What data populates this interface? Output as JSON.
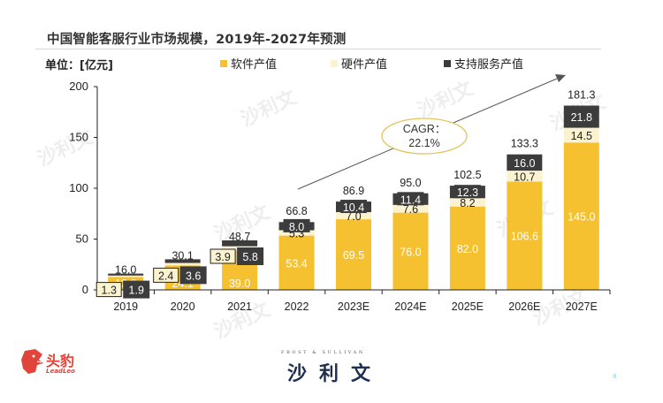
{
  "header": {
    "title": "中国智能客服行业市场规模，2019年-2027年预测",
    "unit": "单位：[亿元]"
  },
  "colors": {
    "software": "#F5C131",
    "hardware": "#FBF3D0",
    "service": "#3C3C3C",
    "cagr_ellipse": "#E2C45A",
    "axis": "#222222",
    "arrow": "#555555"
  },
  "chart_data": {
    "type": "bar",
    "stacked": true,
    "title": "中国智能客服行业市场规模，2019年-2027年预测",
    "xlabel": "",
    "ylabel": "单位：[亿元]",
    "ylim": [
      0,
      200
    ],
    "yticks": [
      0,
      50,
      100,
      150,
      200
    ],
    "categories": [
      "2019",
      "2020",
      "2021",
      "2022",
      "2023E",
      "2024E",
      "2025E",
      "2026E",
      "2027E"
    ],
    "series": [
      {
        "name": "软件产值",
        "key": "software",
        "values": [
          12.8,
          24.1,
          39.0,
          53.4,
          69.5,
          76.0,
          82.0,
          106.6,
          145.0
        ]
      },
      {
        "name": "硬件产值",
        "key": "hardware",
        "values": [
          1.3,
          2.4,
          3.9,
          5.3,
          7.0,
          7.6,
          8.2,
          10.7,
          14.5
        ]
      },
      {
        "name": "支持服务产值",
        "key": "service",
        "values": [
          1.9,
          3.6,
          5.8,
          8.0,
          10.4,
          11.4,
          12.3,
          16.0,
          21.8
        ]
      }
    ],
    "totals": [
      16.0,
      30.1,
      48.7,
      66.8,
      86.9,
      95.0,
      102.5,
      133.3,
      181.3
    ],
    "legend_position": "top",
    "grid": false,
    "annotation": {
      "label": "CAGR：",
      "value": "22.1%"
    }
  },
  "footer": {
    "left_logo_cn": "头豹",
    "left_logo_en": "LeadLeo",
    "center_logo_en": "FROST & SULLIVAN",
    "center_logo_cn": "沙利文",
    "page_number": "8"
  },
  "watermark": "沙利文"
}
